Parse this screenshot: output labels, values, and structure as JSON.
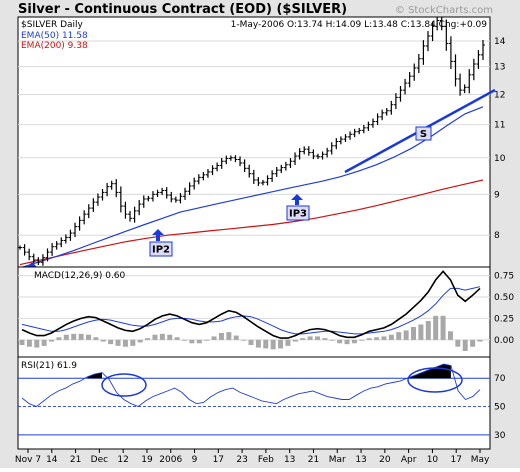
{
  "header": {
    "title": "Silver - Continuous Contract (EOD) ($SILVER)",
    "watermark": "© StockCharts.com",
    "symbol_line": "$SILVER Daily",
    "quote_line": "1-May-2006 O:13.74 H:14.09 L:13.48 C:13.84 Chg:+0.09",
    "ema50_label": "EMA(50) 11.58",
    "ema200_label": "EMA(200) 9.38"
  },
  "colors": {
    "background": "#ffffff",
    "panel_fill": "#ffffff",
    "outer_fill": "#e4e4e4",
    "grid": "#d9d9d9",
    "price": "#000000",
    "ema50": "#1f3dd9",
    "ema200": "#cc1111",
    "annotation": "#1a3ad8",
    "label_box": "#dcdcf6",
    "histogram": "#a8a8a8"
  },
  "x_axis": {
    "labels": [
      "Nov 7",
      "14",
      "21",
      "Dec",
      "12",
      "19",
      "2006",
      "9",
      "17",
      "23",
      "Feb",
      "13",
      "21",
      "Mar",
      "13",
      "20",
      "Apr",
      "10",
      "17",
      "May"
    ]
  },
  "chart_data": [
    {
      "type": "line",
      "title": "Silver - Continuous Contract (EOD) ($SILVER)",
      "subtitle": "$SILVER Daily",
      "x_range": [
        "2005-11-01",
        "2006-05-01"
      ],
      "y_scale": "log",
      "ylim": [
        7.3,
        15.0
      ],
      "y_ticks": [
        8,
        9,
        10,
        11,
        12,
        13,
        14
      ],
      "grid": true,
      "series": [
        {
          "name": "$SILVER Daily",
          "values": [
            7.72,
            7.62,
            7.52,
            7.45,
            7.4,
            7.5,
            7.62,
            7.74,
            7.8,
            7.88,
            7.95,
            8.05,
            8.2,
            8.35,
            8.5,
            8.65,
            8.8,
            8.93,
            9.05,
            9.2,
            9.28,
            9.05,
            8.7,
            8.5,
            8.4,
            8.58,
            8.75,
            8.88,
            8.9,
            9.0,
            9.05,
            9.1,
            8.98,
            8.88,
            8.85,
            8.95,
            9.08,
            9.22,
            9.35,
            9.45,
            9.52,
            9.6,
            9.7,
            9.78,
            9.9,
            9.98,
            10.0,
            9.95,
            9.85,
            9.7,
            9.55,
            9.38,
            9.3,
            9.32,
            9.42,
            9.55,
            9.65,
            9.72,
            9.8,
            9.9,
            10.05,
            10.18,
            10.25,
            10.15,
            10.05,
            10.03,
            10.1,
            10.2,
            10.35,
            10.48,
            10.55,
            10.62,
            10.7,
            10.78,
            10.82,
            10.9,
            11.0,
            11.1,
            11.25,
            11.38,
            11.45,
            11.65,
            11.9,
            12.15,
            12.4,
            12.65,
            12.95,
            13.3,
            13.8,
            14.2,
            14.6,
            14.85,
            14.6,
            13.9,
            13.2,
            12.55,
            12.15,
            12.25,
            12.7,
            13.1,
            13.45,
            13.84
          ]
        },
        {
          "name": "EMA(50)",
          "values": [
            7.28,
            7.4,
            7.52,
            7.65,
            7.8,
            7.95,
            8.1,
            8.25,
            8.4,
            8.55,
            8.65,
            8.75,
            8.85,
            8.95,
            9.05,
            9.15,
            9.25,
            9.35,
            9.47,
            9.62,
            9.8,
            10.02,
            10.28,
            10.6,
            10.98,
            11.35,
            11.58
          ]
        },
        {
          "name": "EMA(200)",
          "values": [
            7.35,
            7.45,
            7.55,
            7.65,
            7.75,
            7.85,
            7.93,
            8.0,
            8.05,
            8.1,
            8.15,
            8.2,
            8.25,
            8.32,
            8.4,
            8.5,
            8.6,
            8.72,
            8.85,
            8.98,
            9.12,
            9.25,
            9.38
          ]
        }
      ],
      "legend": [
        "EMA(50) 11.58",
        "EMA(200) 9.38"
      ],
      "annotations": [
        "IP1",
        "IP2",
        "IP3",
        "S"
      ]
    },
    {
      "type": "line",
      "title": "MACD(12,26,9) 0.60",
      "ylim": [
        -0.2,
        0.85
      ],
      "y_ticks": [
        0.0,
        0.25,
        0.5,
        0.75
      ],
      "y_tick_labels": [
        "0.00",
        "0.25",
        "0.50",
        "0.75"
      ],
      "series": [
        {
          "name": "MACD",
          "values": [
            0.12,
            0.08,
            0.05,
            0.05,
            0.08,
            0.13,
            0.18,
            0.22,
            0.25,
            0.27,
            0.26,
            0.22,
            0.18,
            0.14,
            0.11,
            0.1,
            0.13,
            0.18,
            0.24,
            0.28,
            0.3,
            0.28,
            0.24,
            0.2,
            0.18,
            0.2,
            0.25,
            0.3,
            0.34,
            0.32,
            0.27,
            0.21,
            0.15,
            0.1,
            0.05,
            0.02,
            0.02,
            0.05,
            0.09,
            0.12,
            0.13,
            0.12,
            0.09,
            0.05,
            0.03,
            0.03,
            0.06,
            0.1,
            0.12,
            0.14,
            0.18,
            0.24,
            0.3,
            0.38,
            0.46,
            0.56,
            0.7,
            0.8,
            0.7,
            0.52,
            0.45,
            0.52,
            0.6
          ]
        },
        {
          "name": "Signal",
          "values": [
            0.18,
            0.16,
            0.14,
            0.12,
            0.1,
            0.1,
            0.12,
            0.15,
            0.18,
            0.21,
            0.23,
            0.24,
            0.23,
            0.21,
            0.19,
            0.17,
            0.16,
            0.16,
            0.18,
            0.21,
            0.24,
            0.25,
            0.25,
            0.24,
            0.22,
            0.21,
            0.21,
            0.22,
            0.25,
            0.27,
            0.28,
            0.27,
            0.24,
            0.2,
            0.16,
            0.12,
            0.09,
            0.07,
            0.07,
            0.08,
            0.09,
            0.1,
            0.1,
            0.09,
            0.08,
            0.07,
            0.07,
            0.08,
            0.09,
            0.1,
            0.12,
            0.15,
            0.19,
            0.23,
            0.28,
            0.34,
            0.42,
            0.52,
            0.6,
            0.6,
            0.58,
            0.6,
            0.62
          ]
        },
        {
          "name": "Histogram",
          "values": [
            -0.06,
            -0.08,
            -0.09,
            -0.07,
            -0.02,
            0.03,
            0.06,
            0.07,
            0.07,
            0.06,
            0.03,
            -0.02,
            -0.05,
            -0.07,
            -0.08,
            -0.07,
            -0.03,
            0.02,
            0.06,
            0.07,
            0.06,
            0.03,
            -0.01,
            -0.04,
            -0.04,
            -0.01,
            0.04,
            0.08,
            0.09,
            0.05,
            -0.01,
            -0.06,
            -0.09,
            -0.1,
            -0.11,
            -0.1,
            -0.07,
            -0.02,
            0.02,
            0.04,
            0.04,
            0.02,
            -0.01,
            -0.04,
            -0.05,
            -0.04,
            -0.01,
            0.02,
            0.03,
            0.04,
            0.06,
            0.09,
            0.11,
            0.15,
            0.18,
            0.22,
            0.28,
            0.28,
            0.1,
            -0.08,
            -0.13,
            -0.08,
            -0.02
          ]
        }
      ]
    },
    {
      "type": "line",
      "title": "RSI(21) 61.9",
      "ylim": [
        20,
        85
      ],
      "y_ticks": [
        30,
        50,
        70
      ],
      "reference_lines": [
        30,
        70
      ],
      "series": [
        {
          "name": "RSI(21)",
          "values": [
            56,
            52,
            50,
            54,
            58,
            61,
            63,
            66,
            68,
            71,
            73,
            74,
            69,
            60,
            55,
            52,
            50,
            54,
            57,
            59,
            61,
            63,
            60,
            55,
            52,
            53,
            57,
            60,
            62,
            63,
            60,
            58,
            56,
            54,
            53,
            52,
            55,
            57,
            59,
            60,
            61,
            59,
            57,
            56,
            55,
            55,
            58,
            61,
            63,
            64,
            66,
            67,
            68,
            70,
            72,
            74,
            76,
            78,
            80,
            79,
            61,
            55,
            57,
            61.9
          ]
        }
      ]
    }
  ]
}
